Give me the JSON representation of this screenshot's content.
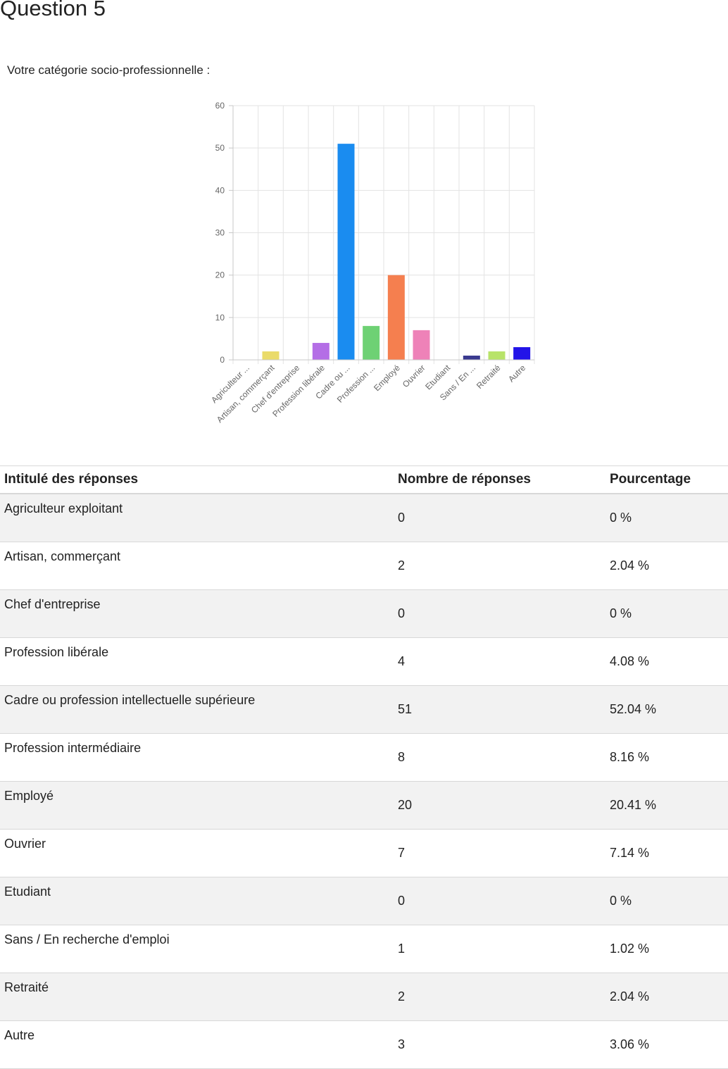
{
  "page": {
    "title": "Question 5",
    "question": "Votre catégorie socio-professionnelle :"
  },
  "chart_data": {
    "type": "bar",
    "categories": [
      "Agriculteur ...",
      "Artisan, commerçant",
      "Chef d'entreprise",
      "Profession libérale",
      "Cadre ou ...",
      "Profession ...",
      "Employé",
      "Ouvrier",
      "Etudiant",
      "Sans / En ...",
      "Retraité",
      "Autre"
    ],
    "values": [
      0,
      2,
      0,
      4,
      51,
      8,
      20,
      7,
      0,
      1,
      2,
      3
    ],
    "colors": [
      "#4c7bd9",
      "#eadb6a",
      "#e0763a",
      "#b46ee6",
      "#1a8cf0",
      "#6ed174",
      "#f57f4f",
      "#ee82b8",
      "#9ad1f5",
      "#3a3a8f",
      "#b8e36a",
      "#2314e8"
    ],
    "yticks": [
      0,
      10,
      20,
      30,
      40,
      50,
      60
    ],
    "ylim": [
      0,
      60
    ],
    "grid": true,
    "legend": "none",
    "title": "",
    "xlabel": "",
    "ylabel": ""
  },
  "table": {
    "headers": [
      "Intitulé des réponses",
      "Nombre de réponses",
      "Pourcentage"
    ],
    "rows": [
      {
        "label": "Agriculteur exploitant",
        "count": "0",
        "percent": "0 %"
      },
      {
        "label": "Artisan, commerçant",
        "count": "2",
        "percent": "2.04 %"
      },
      {
        "label": "Chef d'entreprise",
        "count": "0",
        "percent": "0 %"
      },
      {
        "label": "Profession libérale",
        "count": "4",
        "percent": "4.08 %"
      },
      {
        "label": "Cadre ou profession intellectuelle supérieure",
        "count": "51",
        "percent": "52.04 %"
      },
      {
        "label": "Profession intermédiaire",
        "count": "8",
        "percent": "8.16 %"
      },
      {
        "label": "Employé",
        "count": "20",
        "percent": "20.41 %"
      },
      {
        "label": "Ouvrier",
        "count": "7",
        "percent": "7.14 %"
      },
      {
        "label": "Etudiant",
        "count": "0",
        "percent": "0 %"
      },
      {
        "label": "Sans / En recherche d'emploi",
        "count": "1",
        "percent": "1.02 %"
      },
      {
        "label": "Retraité",
        "count": "2",
        "percent": "2.04 %"
      },
      {
        "label": "Autre",
        "count": "3",
        "percent": "3.06 %"
      }
    ]
  }
}
